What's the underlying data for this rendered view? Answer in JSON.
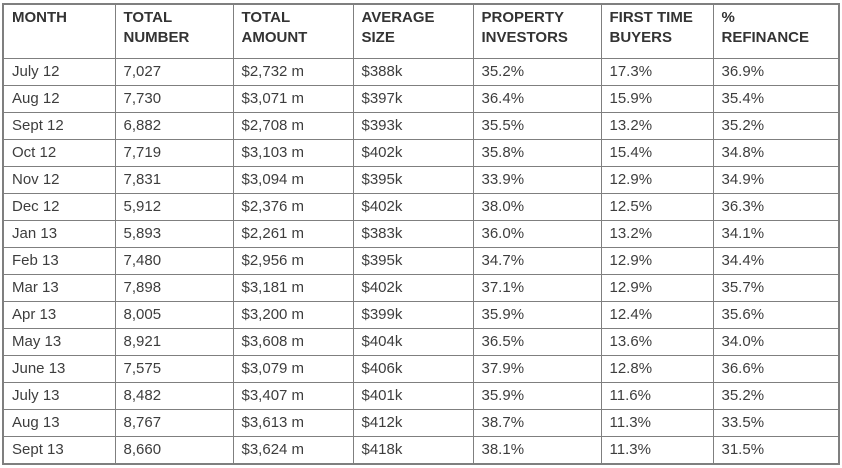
{
  "chart_data": {
    "type": "table",
    "columns": [
      "MONTH",
      "TOTAL\nNUMBER",
      "TOTAL\nAMOUNT",
      "AVERAGE\nSIZE",
      "PROPERTY\nINVESTORS",
      "FIRST TIME\nBUYERS",
      "%\nREFINANCE"
    ],
    "rows": [
      [
        "July 12",
        "7,027",
        "$2,732 m",
        "$388k",
        "35.2%",
        "17.3%",
        "36.9%"
      ],
      [
        "Aug 12",
        "7,730",
        "$3,071 m",
        "$397k",
        "36.4%",
        "15.9%",
        "35.4%"
      ],
      [
        "Sept 12",
        "6,882",
        "$2,708 m",
        "$393k",
        "35.5%",
        "13.2%",
        "35.2%"
      ],
      [
        "Oct 12",
        "7,719",
        "$3,103 m",
        "$402k",
        "35.8%",
        "15.4%",
        "34.8%"
      ],
      [
        "Nov 12",
        "7,831",
        "$3,094 m",
        "$395k",
        "33.9%",
        "12.9%",
        "34.9%"
      ],
      [
        "Dec 12",
        "5,912",
        "$2,376 m",
        "$402k",
        "38.0%",
        "12.5%",
        "36.3%"
      ],
      [
        "Jan 13",
        "5,893",
        "$2,261 m",
        "$383k",
        "36.0%",
        "13.2%",
        "34.1%"
      ],
      [
        "Feb 13",
        "7,480",
        "$2,956 m",
        "$395k",
        "34.7%",
        "12.9%",
        "34.4%"
      ],
      [
        "Mar 13",
        "7,898",
        "$3,181 m",
        "$402k",
        "37.1%",
        "12.9%",
        "35.7%"
      ],
      [
        "Apr 13",
        "8,005",
        "$3,200 m",
        "$399k",
        "35.9%",
        "12.4%",
        "35.6%"
      ],
      [
        "May 13",
        "8,921",
        "$3,608 m",
        "$404k",
        "36.5%",
        "13.6%",
        "34.0%"
      ],
      [
        "June 13",
        "7,575",
        "$3,079 m",
        "$406k",
        "37.9%",
        "12.8%",
        "36.6%"
      ],
      [
        "July 13",
        "8,482",
        "$3,407 m",
        "$401k",
        "35.9%",
        "11.6%",
        "35.2%"
      ],
      [
        "Aug 13",
        "8,767",
        "$3,613 m",
        "$412k",
        "38.7%",
        "11.3%",
        "33.5%"
      ],
      [
        "Sept 13",
        "8,660",
        "$3,624 m",
        "$418k",
        "38.1%",
        "11.3%",
        "31.5%"
      ]
    ]
  },
  "colors": {
    "border": "#7f7f7f",
    "text": "#3d3d3d"
  }
}
